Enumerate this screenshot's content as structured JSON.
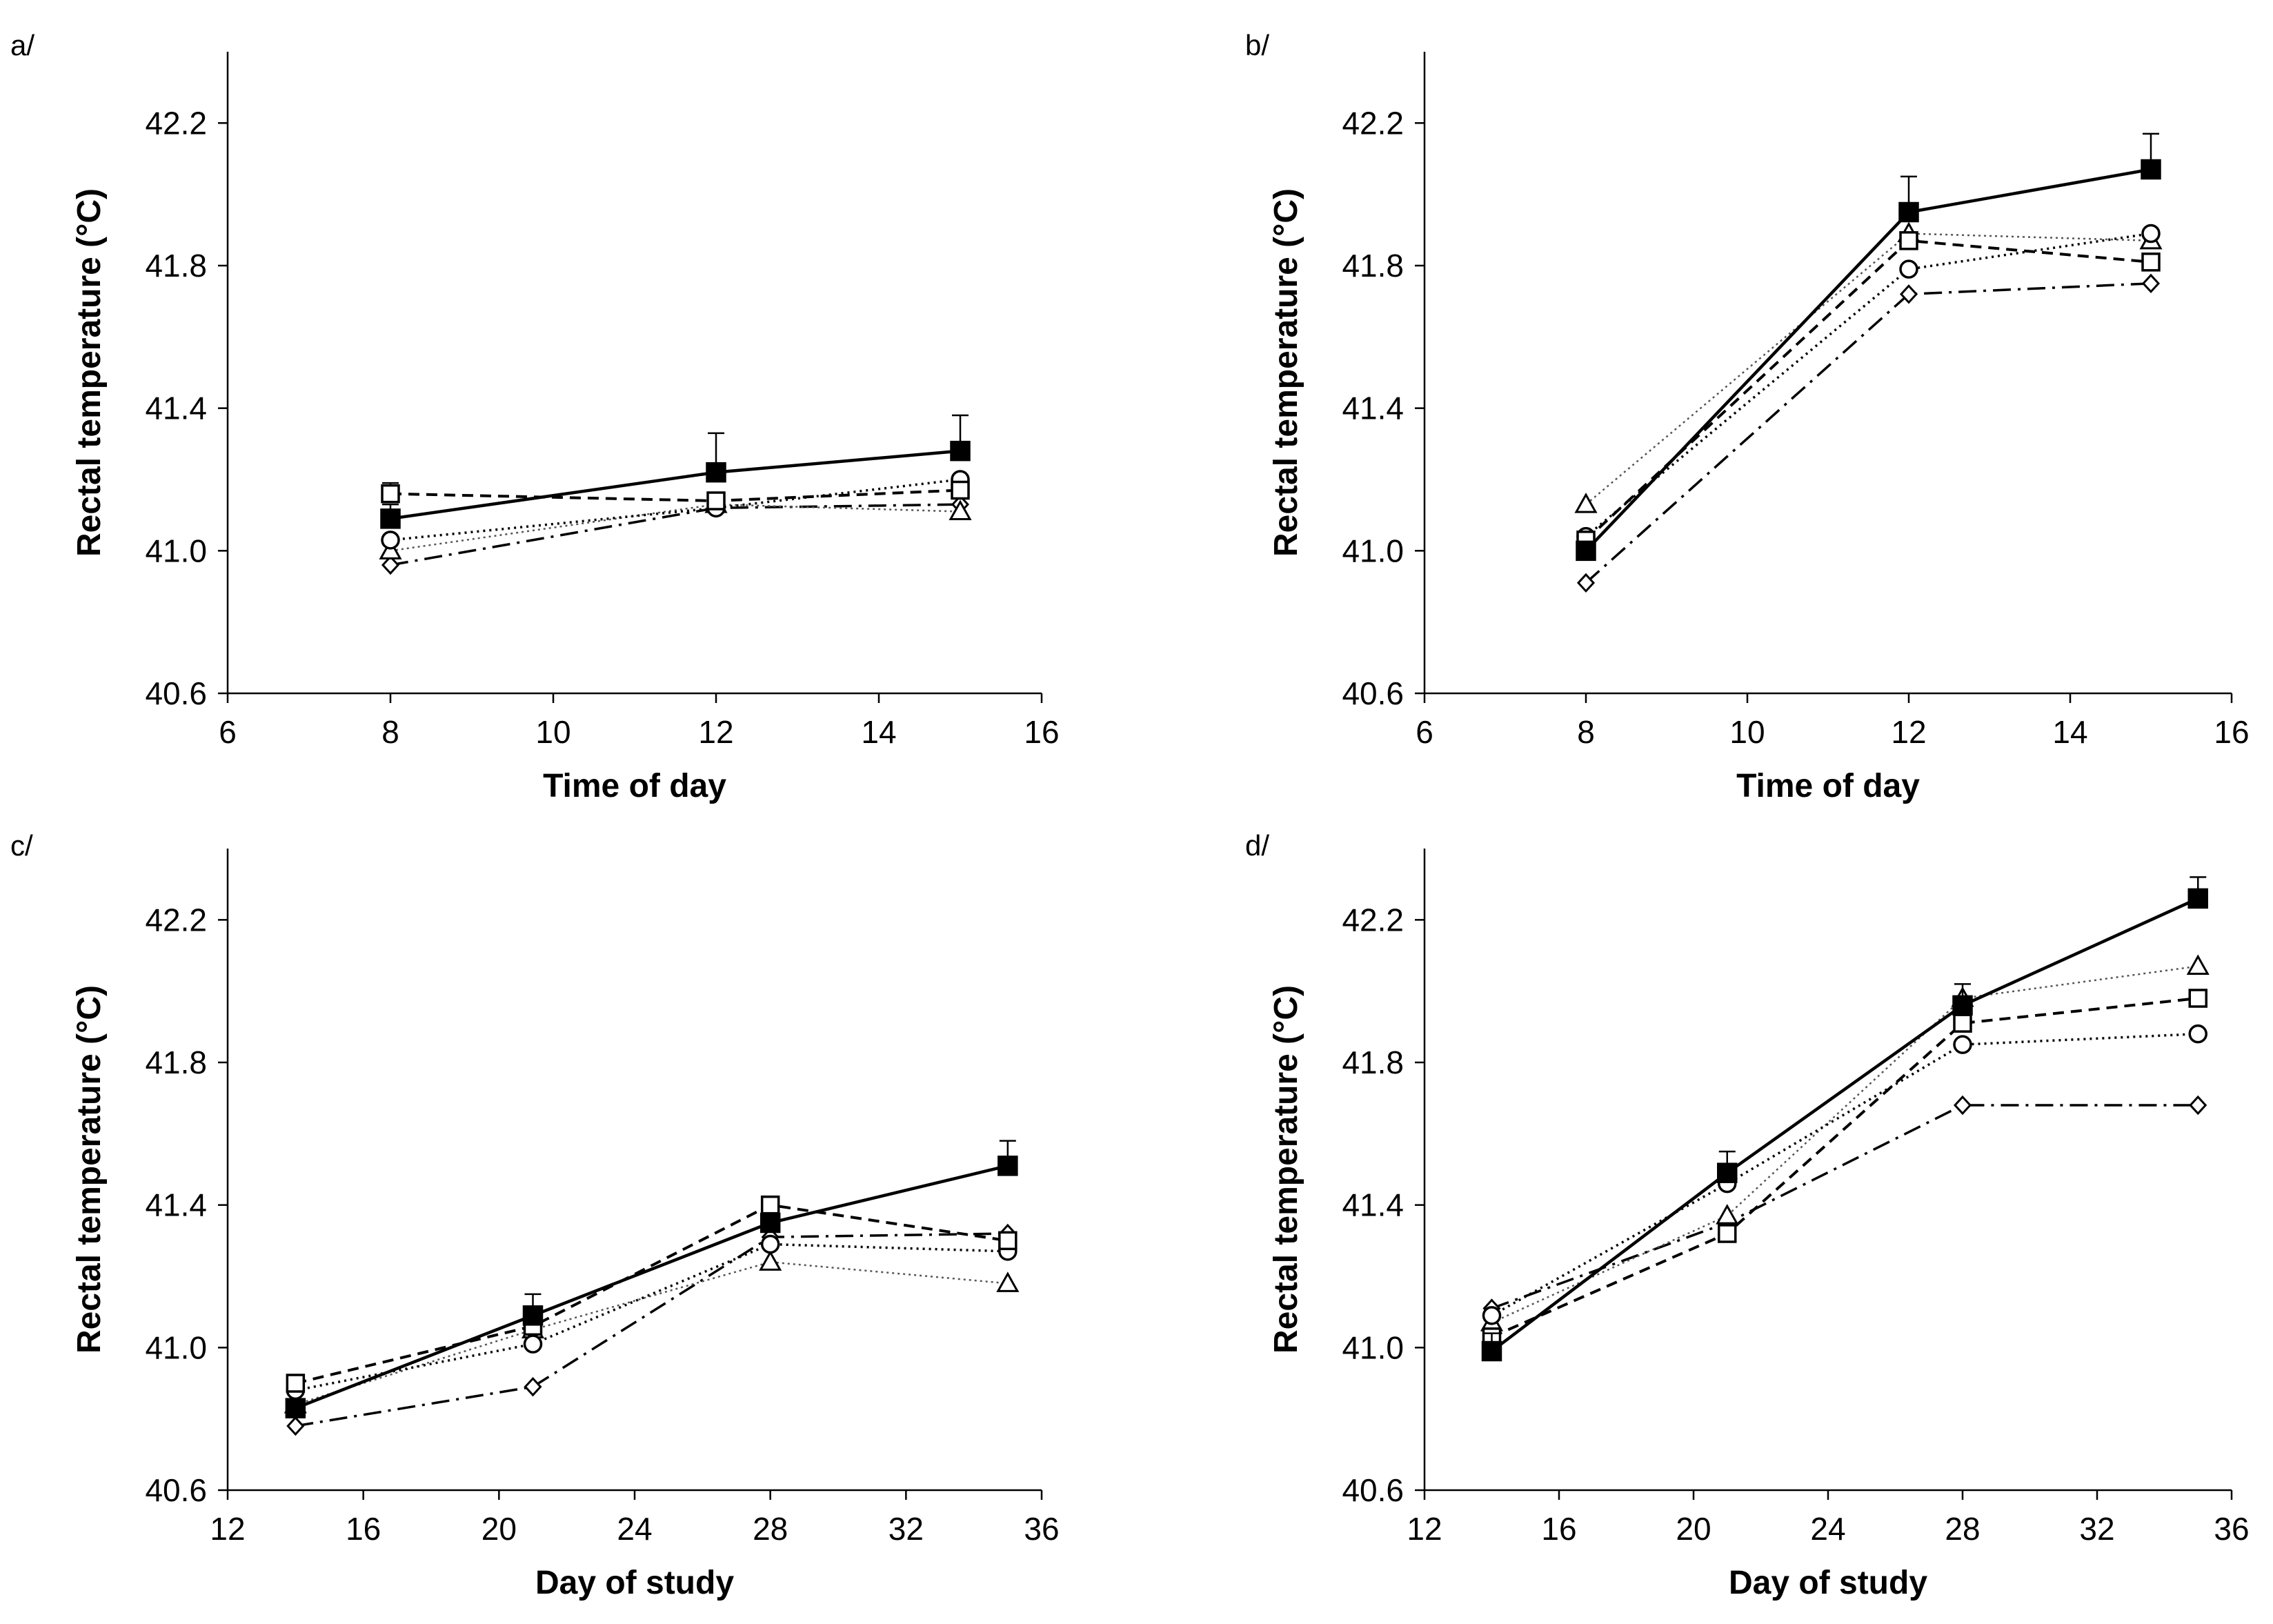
{
  "chart_data": [
    {
      "panel": "a/",
      "type": "line",
      "xlabel": "Time of day",
      "ylabel": "Rectal temperature (°C)",
      "xlim": [
        6,
        16
      ],
      "ylim": [
        40.6,
        42.4
      ],
      "xticks": [
        6,
        8,
        10,
        12,
        14,
        16
      ],
      "yticks": [
        40.6,
        41.0,
        41.4,
        41.8,
        42.2
      ],
      "x": [
        8,
        12,
        15
      ],
      "series": [
        {
          "name": "filled-square",
          "values": [
            41.09,
            41.22,
            41.28
          ],
          "err": [
            0.04,
            0.11,
            0.1
          ]
        },
        {
          "name": "open-square",
          "values": [
            41.16,
            41.14,
            41.17
          ],
          "err": [
            0.03,
            0.0,
            0.0
          ]
        },
        {
          "name": "open-circle",
          "values": [
            41.03,
            41.12,
            41.2
          ],
          "err": [
            0,
            0,
            0
          ]
        },
        {
          "name": "open-triangle",
          "values": [
            41.0,
            41.13,
            41.11
          ],
          "err": [
            0,
            0,
            0
          ]
        },
        {
          "name": "open-diamond",
          "values": [
            40.96,
            41.12,
            41.13
          ],
          "err": [
            0,
            0,
            0
          ]
        }
      ]
    },
    {
      "panel": "b/",
      "type": "line",
      "xlabel": "Time of day",
      "ylabel": "Rectal temperature (°C)",
      "xlim": [
        6,
        16
      ],
      "ylim": [
        40.6,
        42.4
      ],
      "xticks": [
        6,
        8,
        10,
        12,
        14,
        16
      ],
      "yticks": [
        40.6,
        41.0,
        41.4,
        41.8,
        42.2
      ],
      "x": [
        8,
        12,
        15
      ],
      "series": [
        {
          "name": "filled-square",
          "values": [
            41.0,
            41.95,
            42.07
          ],
          "err": [
            0,
            0.1,
            0.1
          ]
        },
        {
          "name": "open-square",
          "values": [
            41.03,
            41.87,
            41.81
          ],
          "err": [
            0,
            0,
            0
          ]
        },
        {
          "name": "open-circle",
          "values": [
            41.04,
            41.79,
            41.89
          ],
          "err": [
            0,
            0,
            0
          ]
        },
        {
          "name": "open-triangle",
          "values": [
            41.13,
            41.89,
            41.87
          ],
          "err": [
            0,
            0,
            0
          ]
        },
        {
          "name": "open-diamond",
          "values": [
            40.91,
            41.72,
            41.75
          ],
          "err": [
            0,
            0,
            0
          ]
        }
      ]
    },
    {
      "panel": "c/",
      "type": "line",
      "xlabel": "Day of study",
      "ylabel": "Rectal temperature (°C)",
      "xlim": [
        12,
        36
      ],
      "ylim": [
        40.6,
        42.4
      ],
      "xticks": [
        12,
        16,
        20,
        24,
        28,
        32,
        36
      ],
      "yticks": [
        40.6,
        41.0,
        41.4,
        41.8,
        42.2
      ],
      "x": [
        14,
        21,
        28,
        35
      ],
      "series": [
        {
          "name": "filled-square",
          "values": [
            40.83,
            41.09,
            41.35,
            41.51
          ],
          "err": [
            0,
            0.06,
            0.0,
            0.07
          ]
        },
        {
          "name": "open-square",
          "values": [
            40.9,
            41.06,
            41.4,
            41.3
          ],
          "err": [
            0,
            0,
            0,
            0
          ]
        },
        {
          "name": "open-circle",
          "values": [
            40.88,
            41.01,
            41.29,
            41.27
          ],
          "err": [
            0,
            0,
            0,
            0
          ]
        },
        {
          "name": "open-triangle",
          "values": [
            40.84,
            41.05,
            41.24,
            41.18
          ],
          "err": [
            0,
            0,
            0,
            0
          ]
        },
        {
          "name": "open-diamond",
          "values": [
            40.78,
            40.89,
            41.31,
            41.32
          ],
          "err": [
            0,
            0,
            0,
            0
          ]
        }
      ]
    },
    {
      "panel": "d/",
      "type": "line",
      "xlabel": "Day of study",
      "ylabel": "Rectal temperature (°C)",
      "xlim": [
        12,
        36
      ],
      "ylim": [
        40.6,
        42.4
      ],
      "xticks": [
        12,
        16,
        20,
        24,
        28,
        32,
        36
      ],
      "yticks": [
        40.6,
        41.0,
        41.4,
        41.8,
        42.2
      ],
      "x": [
        14,
        21,
        28,
        35
      ],
      "series": [
        {
          "name": "filled-square",
          "values": [
            40.99,
            41.49,
            41.96,
            42.26
          ],
          "err": [
            0.05,
            0.06,
            0.06,
            0.06
          ]
        },
        {
          "name": "open-square",
          "values": [
            41.03,
            41.32,
            41.91,
            41.98
          ],
          "err": [
            0,
            0,
            0,
            0
          ]
        },
        {
          "name": "open-circle",
          "values": [
            41.09,
            41.46,
            41.85,
            41.88
          ],
          "err": [
            0,
            0,
            0,
            0
          ]
        },
        {
          "name": "open-triangle",
          "values": [
            41.07,
            41.37,
            41.98,
            42.07
          ],
          "err": [
            0,
            0,
            0,
            0
          ]
        },
        {
          "name": "open-diamond",
          "values": [
            41.11,
            41.35,
            41.68,
            41.68
          ],
          "err": [
            0,
            0,
            0,
            0
          ]
        }
      ]
    }
  ]
}
